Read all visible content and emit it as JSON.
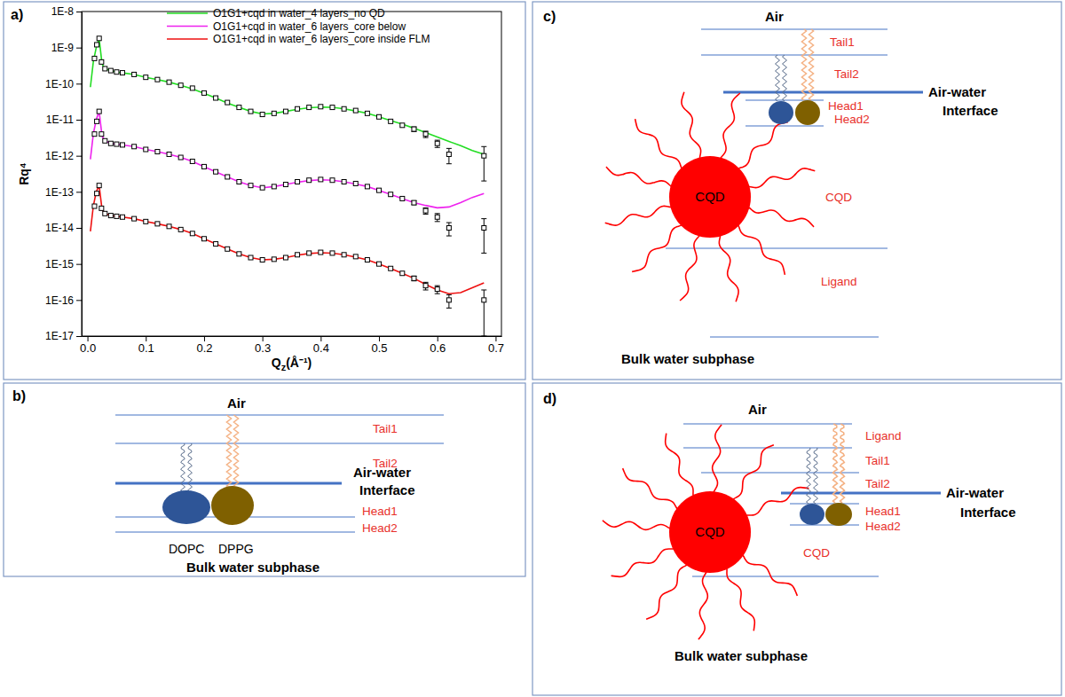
{
  "chart_data": {
    "type": "line",
    "panel": "a)",
    "x_label": "Qz(Å⁻¹)",
    "y_label": "Rq⁴",
    "log": "y",
    "grid": false,
    "legend": "top",
    "xlim": [
      -0.01,
      0.71
    ],
    "xticks": [
      {
        "value": 0,
        "label": "0.0"
      },
      0.1,
      0.2,
      0.3,
      0.4,
      0.5,
      0.6,
      0.7
    ],
    "ylim": [
      1e-17,
      1e-08
    ],
    "yticks": [
      {
        "value": 1e-17,
        "label": "1E-17"
      },
      {
        "value": 1e-16,
        "label": "1E-16"
      },
      {
        "value": 1e-15,
        "label": "1E-15"
      },
      {
        "value": 1e-14,
        "label": "1E-14"
      },
      {
        "value": 1e-13,
        "label": "1E-13"
      },
      {
        "value": 1e-12,
        "label": "1E-12"
      },
      {
        "value": 1e-11,
        "label": "1E-11"
      },
      {
        "value": 1e-10,
        "label": "1E-10"
      },
      {
        "value": 1e-09,
        "label": "1E-9"
      },
      {
        "value": 1e-08,
        "label": "1E-8"
      }
    ],
    "series": [
      {
        "name": "O1G1+cqd in water_4 layers_no QD",
        "type": "line",
        "color": "#22dd22",
        "x": [
          0.005,
          0.01,
          0.015,
          0.02,
          0.025,
          0.03,
          0.04,
          0.05,
          0.06,
          0.08,
          0.1,
          0.12,
          0.14,
          0.16,
          0.18,
          0.2,
          0.22,
          0.24,
          0.26,
          0.28,
          0.3,
          0.32,
          0.34,
          0.36,
          0.38,
          0.4,
          0.42,
          0.44,
          0.46,
          0.48,
          0.5,
          0.52,
          0.54,
          0.56,
          0.58,
          0.6,
          0.62,
          0.64,
          0.66,
          0.68
        ],
        "values": [
          8e-11,
          4e-10,
          1e-09,
          1.8e-09,
          3.5e-10,
          2.6e-10,
          2.3e-10,
          2.1e-10,
          2e-10,
          1.8e-10,
          1.5e-10,
          1.3e-10,
          1.1e-10,
          9e-11,
          7.2e-11,
          5.4e-11,
          4e-11,
          2.9e-11,
          2.2e-11,
          1.7e-11,
          1.45e-11,
          1.5e-11,
          1.7e-11,
          1.95e-11,
          2.15e-11,
          2.25e-11,
          2.2e-11,
          2e-11,
          1.75e-11,
          1.5e-11,
          1.2e-11,
          9.5e-12,
          7.5e-12,
          5.8e-12,
          4.4e-12,
          3.3e-12,
          2.5e-12,
          1.9e-12,
          1.4e-12,
          1.1e-12
        ]
      },
      {
        "type": "scatter",
        "marker": "square",
        "color": "#000000",
        "x": [
          0.012,
          0.016,
          0.02,
          0.024,
          0.03,
          0.04,
          0.05,
          0.06,
          0.08,
          0.1,
          0.12,
          0.14,
          0.16,
          0.18,
          0.2,
          0.22,
          0.24,
          0.26,
          0.28,
          0.3,
          0.32,
          0.34,
          0.36,
          0.38,
          0.4,
          0.42,
          0.44,
          0.46,
          0.48,
          0.5,
          0.52,
          0.54,
          0.56,
          0.58,
          0.6,
          0.62,
          0.68
        ],
        "values": [
          5e-10,
          1.2e-09,
          1.8e-09,
          4e-10,
          2.6e-10,
          2.3e-10,
          2.1e-10,
          2e-10,
          1.8e-10,
          1.5e-10,
          1.3e-10,
          1.1e-10,
          9e-11,
          7.5e-11,
          5.5e-11,
          4e-11,
          3e-11,
          2.2e-11,
          1.7e-11,
          1.4e-11,
          1.5e-11,
          1.7e-11,
          2e-11,
          2.2e-11,
          2.3e-11,
          2.2e-11,
          2e-11,
          1.8e-11,
          1.5e-11,
          1.2e-11,
          9e-12,
          7e-12,
          5.5e-12,
          4e-12,
          2.2e-12,
          1.1e-12,
          1e-12
        ],
        "errors": [
          null,
          null,
          null,
          null,
          null,
          null,
          null,
          null,
          null,
          null,
          null,
          null,
          null,
          null,
          null,
          null,
          null,
          null,
          null,
          null,
          null,
          null,
          null,
          null,
          null,
          null,
          null,
          null,
          null,
          null,
          null,
          null,
          8e-13,
          8e-13,
          5e-13,
          5e-13,
          8e-13
        ]
      },
      {
        "name": "O1G1+cqd in water_6 layers_core below",
        "type": "line",
        "color": "#ee22ee",
        "x": [
          0.005,
          0.01,
          0.015,
          0.02,
          0.025,
          0.03,
          0.04,
          0.05,
          0.06,
          0.08,
          0.1,
          0.12,
          0.14,
          0.16,
          0.18,
          0.2,
          0.22,
          0.24,
          0.26,
          0.28,
          0.3,
          0.32,
          0.34,
          0.36,
          0.38,
          0.4,
          0.42,
          0.44,
          0.46,
          0.48,
          0.5,
          0.52,
          0.54,
          0.56,
          0.58,
          0.6,
          0.62,
          0.64,
          0.66,
          0.68
        ],
        "values": [
          8e-13,
          4e-12,
          1e-11,
          1.7e-11,
          3.5e-12,
          2.6e-12,
          2.2e-12,
          2.1e-12,
          2e-12,
          1.8e-12,
          1.5e-12,
          1.3e-12,
          1.1e-12,
          9e-13,
          7e-13,
          5e-13,
          3.6e-13,
          2.6e-13,
          1.9e-13,
          1.5e-13,
          1.3e-13,
          1.4e-13,
          1.6e-13,
          1.85e-13,
          2.05e-13,
          2.15e-13,
          2.1e-13,
          1.9e-13,
          1.65e-13,
          1.4e-13,
          1.1e-13,
          8.5e-14,
          6.5e-14,
          5e-14,
          4.2e-14,
          3.6e-14,
          3.8e-14,
          5e-14,
          7e-14,
          9e-14
        ]
      },
      {
        "type": "scatter",
        "marker": "square",
        "color": "#000000",
        "x": [
          0.012,
          0.016,
          0.02,
          0.024,
          0.03,
          0.04,
          0.05,
          0.06,
          0.08,
          0.1,
          0.12,
          0.14,
          0.16,
          0.18,
          0.2,
          0.22,
          0.24,
          0.26,
          0.28,
          0.3,
          0.32,
          0.34,
          0.36,
          0.38,
          0.4,
          0.42,
          0.44,
          0.46,
          0.48,
          0.5,
          0.52,
          0.54,
          0.56,
          0.58,
          0.6,
          0.62,
          0.68
        ],
        "values": [
          4e-12,
          9e-12,
          1.7e-11,
          4e-12,
          2.6e-12,
          2.2e-12,
          2.1e-12,
          2e-12,
          1.8e-12,
          1.5e-12,
          1.3e-12,
          1.1e-12,
          9e-13,
          7e-13,
          5e-13,
          3.6e-13,
          2.6e-13,
          1.9e-13,
          1.5e-13,
          1.3e-13,
          1.4e-13,
          1.6e-13,
          1.9e-13,
          2.1e-13,
          2.2e-13,
          2.1e-13,
          1.9e-13,
          1.7e-13,
          1.4e-13,
          1.1e-13,
          8.5e-14,
          6.5e-14,
          5e-14,
          3e-14,
          2e-14,
          1e-14,
          1e-14
        ],
        "errors": [
          null,
          null,
          null,
          null,
          null,
          null,
          null,
          null,
          null,
          null,
          null,
          null,
          null,
          null,
          null,
          null,
          null,
          null,
          null,
          null,
          null,
          null,
          null,
          null,
          null,
          null,
          null,
          null,
          null,
          null,
          null,
          null,
          6e-15,
          6e-15,
          5e-15,
          4e-15,
          8e-15
        ]
      },
      {
        "name": "O1G1+cqd in water_6 layers_core inside FLM",
        "type": "line",
        "color": "#ee1111",
        "x": [
          0.005,
          0.01,
          0.015,
          0.02,
          0.025,
          0.03,
          0.04,
          0.05,
          0.06,
          0.08,
          0.1,
          0.12,
          0.14,
          0.16,
          0.18,
          0.2,
          0.22,
          0.24,
          0.26,
          0.28,
          0.3,
          0.32,
          0.34,
          0.36,
          0.38,
          0.4,
          0.42,
          0.44,
          0.46,
          0.48,
          0.5,
          0.52,
          0.54,
          0.56,
          0.58,
          0.6,
          0.62,
          0.64,
          0.66,
          0.68
        ],
        "values": [
          8e-15,
          4e-14,
          1e-13,
          1.5e-13,
          3.2e-14,
          2.5e-14,
          2.2e-14,
          2.1e-14,
          2e-14,
          1.8e-14,
          1.5e-14,
          1.3e-14,
          1.1e-14,
          9e-15,
          7e-15,
          5e-15,
          3.6e-15,
          2.6e-15,
          1.9e-15,
          1.5e-15,
          1.3e-15,
          1.35e-15,
          1.5e-15,
          1.75e-15,
          1.95e-15,
          2.05e-15,
          2e-15,
          1.8e-15,
          1.55e-15,
          1.3e-15,
          1e-15,
          7.5e-16,
          5.5e-16,
          4e-16,
          2.7e-16,
          1.9e-16,
          1.5e-16,
          1.6e-16,
          2.2e-16,
          3e-16
        ]
      },
      {
        "type": "scatter",
        "marker": "square",
        "color": "#000000",
        "x": [
          0.012,
          0.016,
          0.02,
          0.024,
          0.03,
          0.04,
          0.05,
          0.06,
          0.08,
          0.1,
          0.12,
          0.14,
          0.16,
          0.18,
          0.2,
          0.22,
          0.24,
          0.26,
          0.28,
          0.3,
          0.32,
          0.34,
          0.36,
          0.38,
          0.4,
          0.42,
          0.44,
          0.46,
          0.48,
          0.5,
          0.52,
          0.54,
          0.56,
          0.58,
          0.6,
          0.62,
          0.68
        ],
        "values": [
          4e-14,
          9e-14,
          1.5e-13,
          3.5e-14,
          2.5e-14,
          2.2e-14,
          2.1e-14,
          2e-14,
          1.8e-14,
          1.5e-14,
          1.3e-14,
          1.1e-14,
          9e-15,
          7e-15,
          5e-15,
          3.6e-15,
          2.6e-15,
          1.9e-15,
          1.5e-15,
          1.3e-15,
          1.35e-15,
          1.5e-15,
          1.8e-15,
          2e-15,
          2.1e-15,
          2e-15,
          1.8e-15,
          1.6e-15,
          1.3e-15,
          1e-15,
          7.5e-16,
          5.5e-16,
          4e-16,
          2.5e-16,
          2e-16,
          1e-16,
          1e-16
        ],
        "errors": [
          null,
          null,
          null,
          null,
          null,
          null,
          null,
          null,
          null,
          null,
          null,
          null,
          null,
          null,
          null,
          null,
          null,
          null,
          null,
          null,
          null,
          null,
          null,
          null,
          null,
          null,
          null,
          null,
          null,
          null,
          null,
          null,
          6e-17,
          6e-17,
          5e-17,
          4e-17,
          9e-17
        ]
      }
    ]
  },
  "diagrams": {
    "b": {
      "panel": "b)",
      "air": "Air",
      "layers": [
        "Tail1",
        "Tail2",
        "Head1",
        "Head2"
      ],
      "interface": [
        "Air-water",
        "Interface"
      ],
      "lipids": [
        "DOPC",
        "DPPG"
      ],
      "subphase": "Bulk water subphase"
    },
    "c": {
      "panel": "c)",
      "air": "Air",
      "layers": [
        "Tail1",
        "Tail2",
        "Head1",
        "Head2",
        "CQD",
        "Ligand"
      ],
      "interface": [
        "Air-water",
        "Interface"
      ],
      "particle": "CQD",
      "subphase": "Bulk water subphase"
    },
    "d": {
      "panel": "d)",
      "air": "Air",
      "layers": [
        "Ligand",
        "Tail1",
        "Tail2",
        "Head1",
        "Head2",
        "CQD"
      ],
      "interface": [
        "Air-water",
        "Interface"
      ],
      "particle": "CQD",
      "subphase": "Bulk water subphase"
    }
  }
}
